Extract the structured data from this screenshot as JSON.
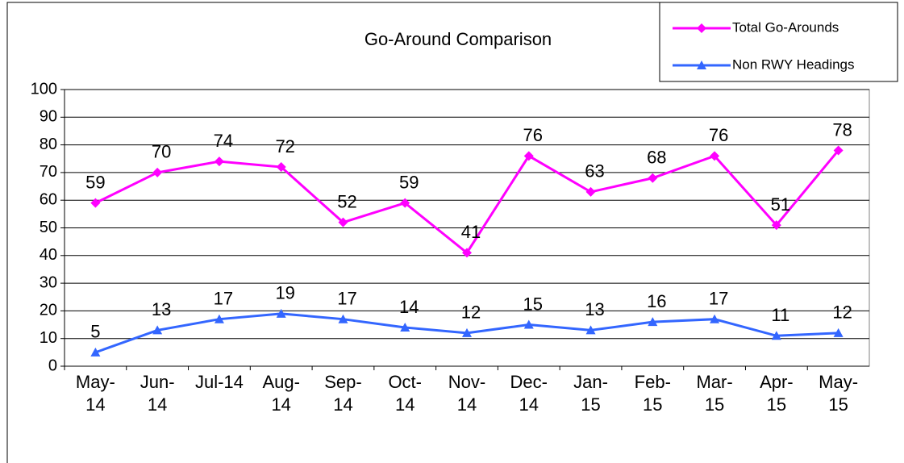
{
  "chart_data": {
    "type": "line",
    "title": "Go-Around Comparison",
    "categories": [
      "May-14",
      "Jun-14",
      "Jul-14",
      "Aug-14",
      "Sep-14",
      "Oct-14",
      "Nov-14",
      "Dec-14",
      "Jan-15",
      "Feb-15",
      "Mar-15",
      "Apr-15",
      "May-15"
    ],
    "series": [
      {
        "name": "Total Go-Arounds",
        "color": "#ff00ff",
        "marker": "diamond",
        "values": [
          59,
          70,
          74,
          72,
          52,
          59,
          41,
          76,
          63,
          68,
          76,
          51,
          78
        ]
      },
      {
        "name": "Non RWY Headings",
        "color": "#3366ff",
        "marker": "triangle",
        "values": [
          5,
          13,
          17,
          19,
          17,
          14,
          12,
          15,
          13,
          16,
          17,
          11,
          12
        ]
      }
    ],
    "ylim": [
      0,
      100
    ],
    "yticks": [
      0,
      10,
      20,
      30,
      40,
      50,
      60,
      70,
      80,
      90,
      100
    ],
    "grid": true,
    "legend": "top-right"
  }
}
